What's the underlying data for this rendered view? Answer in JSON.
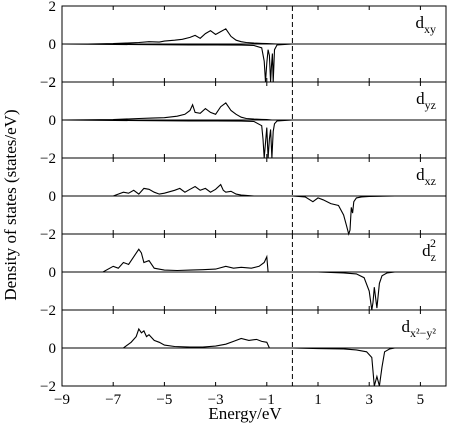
{
  "chart_data": {
    "type": "line",
    "xlabel": "Energy/eV",
    "ylabel": "Density of states (states/eV)",
    "xlim": [
      -9,
      6
    ],
    "x_ticks": [
      -9,
      -7,
      -5,
      -3,
      -1,
      1,
      3,
      5
    ],
    "fermi_level": 0,
    "grid": false,
    "panels": [
      {
        "label": "dxy",
        "label_main": "d",
        "label_sub": "xy",
        "label_sup": "",
        "ylim": [
          -2,
          2
        ],
        "y_ticks": [
          2,
          0,
          -2
        ],
        "series": [
          {
            "x": [
              -9,
              -8,
              -7,
              -6.5,
              -6,
              -5.6,
              -5.2,
              -5,
              -4.6,
              -4.3,
              -4,
              -3.8,
              -3.6,
              -3.4,
              -3.2,
              -3,
              -2.8,
              -2.6,
              -2.4,
              -2.2,
              -2,
              -1.8,
              -1.5,
              -1.2,
              -1.0,
              -0.8,
              -0.6,
              -0.4,
              0,
              6
            ],
            "y": [
              0,
              0,
              0.02,
              0.05,
              0.08,
              0.12,
              0.1,
              0.15,
              0.2,
              0.25,
              0.35,
              0.45,
              0.3,
              0.55,
              0.7,
              0.5,
              0.65,
              0.8,
              0.4,
              0.2,
              0.12,
              0.08,
              0.05,
              0.03,
              0.02,
              0.01,
              0,
              0,
              0,
              0
            ]
          },
          {
            "x": [
              -9,
              -6,
              -4,
              -3,
              -2,
              -1.5,
              -1.2,
              -1.1,
              -1.05,
              -1.0,
              -0.95,
              -0.9,
              -0.85,
              -0.82,
              -0.78,
              -0.75,
              -0.7,
              -0.6,
              0,
              6
            ],
            "y": [
              0,
              -0.03,
              -0.05,
              -0.05,
              -0.06,
              -0.08,
              -0.2,
              -0.9,
              -2.0,
              -1.0,
              -0.3,
              -0.6,
              -2.0,
              -1.2,
              -0.5,
              -2.0,
              -0.3,
              -0.05,
              0,
              0
            ]
          }
        ]
      },
      {
        "label": "dyz",
        "label_main": "d",
        "label_sub": "yz",
        "label_sup": "",
        "ylim": [
          -2,
          2
        ],
        "y_ticks": [
          2,
          0,
          -2
        ],
        "series": [
          {
            "x": [
              -9,
              -7,
              -6,
              -5.5,
              -5,
              -4.5,
              -4.2,
              -4.0,
              -3.9,
              -3.8,
              -3.6,
              -3.4,
              -3.2,
              -3.0,
              -2.8,
              -2.6,
              -2.5,
              -2.4,
              -2.2,
              -2.0,
              -1.8,
              -1.5,
              -1.2,
              -1.0,
              -0.8,
              0,
              6
            ],
            "y": [
              0,
              0.02,
              0.08,
              0.1,
              0.12,
              0.2,
              0.3,
              0.5,
              0.8,
              0.4,
              0.35,
              0.6,
              0.4,
              0.3,
              0.7,
              0.9,
              0.7,
              0.5,
              0.3,
              0.15,
              0.08,
              0.05,
              0.03,
              0.02,
              0,
              0,
              0
            ]
          },
          {
            "x": [
              -9,
              -6,
              -4,
              -3,
              -2,
              -1.5,
              -1.2,
              -1.15,
              -1.1,
              -1.05,
              -1.0,
              -0.95,
              -0.9,
              -0.85,
              -0.8,
              -0.75,
              -0.7,
              -0.6,
              0,
              6
            ],
            "y": [
              0,
              -0.03,
              -0.05,
              -0.05,
              -0.06,
              -0.08,
              -0.3,
              -1.0,
              -2.0,
              -1.2,
              -0.4,
              -2.0,
              -1.0,
              -0.5,
              -2.0,
              -0.6,
              -0.2,
              -0.05,
              0,
              0
            ]
          }
        ]
      },
      {
        "label": "dxz",
        "label_main": "d",
        "label_sub": "xz",
        "label_sup": "",
        "ylim": [
          -2,
          2
        ],
        "y_ticks": [
          0,
          -2
        ],
        "series": [
          {
            "x": [
              -9,
              -7,
              -6.6,
              -6.4,
              -6.2,
              -6,
              -5.8,
              -5.6,
              -5.4,
              -5.2,
              -5,
              -4.6,
              -4.4,
              -4.2,
              -4,
              -3.8,
              -3.6,
              -3.4,
              -3.2,
              -3,
              -2.8,
              -2.7,
              -2.6,
              -2.4,
              -2.2,
              -2,
              -1.8,
              -1.5,
              0,
              6
            ],
            "y": [
              0,
              0,
              0.2,
              0.15,
              0.3,
              0.1,
              0.4,
              0.35,
              0.2,
              0.1,
              0.15,
              0.3,
              0.4,
              0.2,
              0.35,
              0.5,
              0.3,
              0.4,
              0.2,
              0.35,
              0.6,
              0.3,
              0.2,
              0.25,
              0.1,
              0.05,
              0.03,
              0,
              0,
              0
            ]
          },
          {
            "x": [
              -9,
              0,
              0.5,
              0.8,
              1.0,
              1.2,
              1.5,
              1.8,
              2.0,
              2.1,
              2.2,
              2.25,
              2.3,
              2.35,
              2.4,
              2.5,
              2.7,
              3.0,
              4,
              6
            ],
            "y": [
              0,
              0,
              -0.05,
              -0.3,
              -0.1,
              -0.2,
              -0.4,
              -0.5,
              -1.0,
              -1.5,
              -2.0,
              -1.8,
              -0.6,
              -0.9,
              -0.3,
              -0.1,
              -0.05,
              -0.02,
              0,
              0
            ]
          }
        ]
      },
      {
        "label": "dz2",
        "label_main": "d",
        "label_sub": "z",
        "label_sup": "2",
        "ylim": [
          -2,
          2
        ],
        "y_ticks": [
          0,
          -2
        ],
        "series": [
          {
            "x": [
              -9,
              -7.4,
              -7,
              -6.8,
              -6.6,
              -6.4,
              -6.2,
              -6.0,
              -5.9,
              -5.8,
              -5.6,
              -5.4,
              -5.0,
              -4.5,
              -4,
              -3.5,
              -3,
              -2.6,
              -2.3,
              -2,
              -1.6,
              -1.3,
              -1.1,
              -1.0,
              -0.95,
              0,
              6
            ],
            "y": [
              0,
              0,
              0.3,
              0.2,
              0.5,
              0.4,
              0.8,
              1.2,
              1.0,
              0.5,
              0.6,
              0.2,
              0.1,
              0.08,
              0.1,
              0.12,
              0.15,
              0.3,
              0.2,
              0.25,
              0.2,
              0.3,
              0.5,
              0.8,
              0,
              0,
              0
            ]
          },
          {
            "x": [
              -9,
              0,
              1,
              2,
              2.5,
              2.8,
              3.0,
              3.1,
              3.15,
              3.2,
              3.3,
              3.4,
              3.5,
              3.7,
              4,
              6
            ],
            "y": [
              0,
              0,
              0,
              -0.05,
              -0.1,
              -0.3,
              -1.0,
              -2.0,
              -1.6,
              -0.8,
              -1.9,
              -0.6,
              -0.2,
              -0.05,
              0,
              0
            ]
          }
        ]
      },
      {
        "label": "dx2-y2",
        "label_main": "d",
        "label_sub": "x²−y²",
        "label_sup": "",
        "ylim": [
          -2,
          2
        ],
        "y_ticks": [
          0,
          -2
        ],
        "series": [
          {
            "x": [
              -9,
              -6.6,
              -6.3,
              -6.1,
              -6.0,
              -5.9,
              -5.8,
              -5.7,
              -5.6,
              -5.4,
              -5.2,
              -5.0,
              -4.6,
              -4.0,
              -3.5,
              -3.0,
              -2.6,
              -2.3,
              -2.0,
              -1.7,
              -1.4,
              -1.2,
              -1.0,
              -0.9,
              0,
              6
            ],
            "y": [
              0,
              0,
              0.3,
              0.6,
              1.0,
              0.8,
              0.9,
              0.6,
              0.7,
              0.4,
              0.3,
              0.15,
              0.08,
              0.05,
              0.05,
              0.1,
              0.2,
              0.35,
              0.5,
              0.4,
              0.45,
              0.35,
              0.3,
              0,
              0,
              0
            ]
          },
          {
            "x": [
              -9,
              0,
              1,
              2,
              2.5,
              2.9,
              3.1,
              3.2,
              3.3,
              3.4,
              3.5,
              3.6,
              3.8,
              4,
              6
            ],
            "y": [
              0,
              0,
              -0.03,
              -0.05,
              -0.1,
              -0.2,
              -0.5,
              -2.0,
              -1.5,
              -2.0,
              -1.0,
              -0.2,
              -0.05,
              0,
              0
            ]
          }
        ]
      }
    ]
  }
}
